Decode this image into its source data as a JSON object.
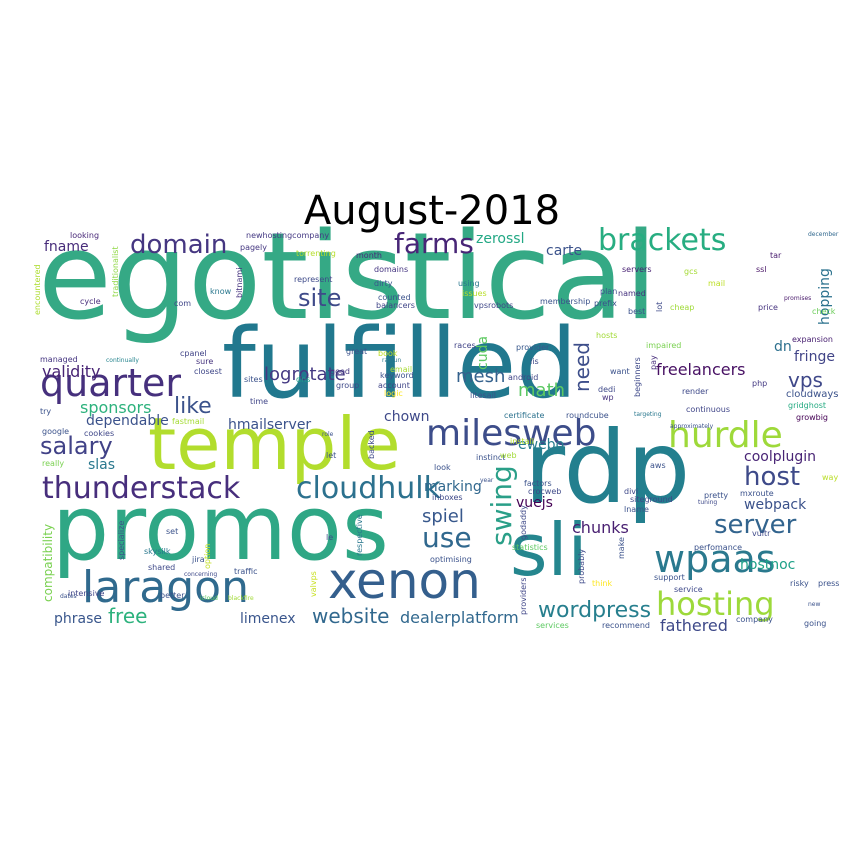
{
  "title": "August-2018",
  "palette": "viridis",
  "words": [
    {
      "text": "egotistical",
      "color": "#35a985"
    },
    {
      "text": "fulfilled",
      "color": "#21788e"
    },
    {
      "text": "rdp",
      "color": "#237f8e"
    },
    {
      "text": "promos",
      "color": "#2fa785"
    },
    {
      "text": "temple",
      "color": "#b2dd2d"
    },
    {
      "text": "sli",
      "color": "#25868e"
    },
    {
      "text": "xenon",
      "color": "#345f8d"
    },
    {
      "text": "laragon",
      "color": "#306a8e"
    },
    {
      "text": "quarter",
      "color": "#46307d"
    },
    {
      "text": "milesweb",
      "color": "#3d4d8a"
    },
    {
      "text": "hurdle",
      "color": "#9ed93a"
    },
    {
      "text": "thunderstack",
      "color": "#472e7c"
    },
    {
      "text": "cloudhulk",
      "color": "#2c718e"
    },
    {
      "text": "wpaas",
      "color": "#2a798e"
    },
    {
      "text": "hosting",
      "color": "#9dd93b"
    },
    {
      "text": "brackets",
      "color": "#27ad81"
    },
    {
      "text": "domain",
      "color": "#453681"
    },
    {
      "text": "farms",
      "color": "#482677"
    },
    {
      "text": "salary",
      "color": "#414287"
    },
    {
      "text": "host",
      "color": "#3e4a89"
    },
    {
      "text": "server",
      "color": "#32648e"
    },
    {
      "text": "site",
      "color": "#3e4a89"
    },
    {
      "text": "like",
      "color": "#3b528b"
    },
    {
      "text": "swing",
      "color": "#2a9f88"
    },
    {
      "text": "use",
      "color": "#30688e"
    },
    {
      "text": "website",
      "color": "#31688e"
    },
    {
      "text": "wordpress",
      "color": "#277f8e"
    },
    {
      "text": "vps",
      "color": "#3f4889"
    },
    {
      "text": "need",
      "color": "#3d4e8a"
    },
    {
      "text": "mesh",
      "color": "#34618d"
    },
    {
      "text": "math",
      "color": "#5cc863"
    },
    {
      "text": "free",
      "color": "#2db27d"
    },
    {
      "text": "spiel",
      "color": "#38588c"
    },
    {
      "text": "chunks",
      "color": "#481f71"
    },
    {
      "text": "fathered",
      "color": "#3e4989"
    },
    {
      "text": "dealerplatform",
      "color": "#31688e"
    },
    {
      "text": "logrotate",
      "color": "#443983"
    },
    {
      "text": "sponsors",
      "color": "#2db27d"
    },
    {
      "text": "validity",
      "color": "#482475"
    },
    {
      "text": "fname",
      "color": "#472c7a"
    },
    {
      "text": "freelancers",
      "color": "#471063"
    },
    {
      "text": "hostnoc",
      "color": "#1fa188"
    },
    {
      "text": "webpack",
      "color": "#3b528b"
    },
    {
      "text": "coolplugin",
      "color": "#482475"
    },
    {
      "text": "limenex",
      "color": "#39558c"
    },
    {
      "text": "vuejs",
      "color": "#440154"
    },
    {
      "text": "ewebo",
      "color": "#287d8e"
    },
    {
      "text": "zerossl",
      "color": "#22a884"
    },
    {
      "text": "carte",
      "color": "#3b528b"
    },
    {
      "text": "dependable",
      "color": "#3b528b"
    },
    {
      "text": "chown",
      "color": "#3e4989"
    },
    {
      "text": "marking",
      "color": "#31688e"
    },
    {
      "text": "hmailserver",
      "color": "#3b528b"
    },
    {
      "text": "phrase",
      "color": "#39568c"
    },
    {
      "text": "hopping",
      "color": "#2c728e"
    },
    {
      "text": "fringe",
      "color": "#414487"
    },
    {
      "text": "dn",
      "color": "#2d708e"
    },
    {
      "text": "cuda",
      "color": "#5ec962"
    },
    {
      "text": "slas",
      "color": "#2a788e"
    },
    {
      "text": "compatibility",
      "color": "#7ad151"
    },
    {
      "text": "cloudways",
      "color": "#3b528b"
    },
    {
      "text": "newhostingcompany",
      "color": "#443983"
    },
    {
      "text": "torrenting",
      "color": "#b5de2b"
    },
    {
      "text": "pagely",
      "color": "#453781"
    },
    {
      "text": "looking",
      "color": "#482878"
    },
    {
      "text": "traditionalist",
      "color": "#8fd744"
    },
    {
      "text": "encountered",
      "color": "#addc30"
    },
    {
      "text": "bitnami",
      "color": "#46337f"
    },
    {
      "text": "represent",
      "color": "#3e4a89"
    },
    {
      "text": "dirty",
      "color": "#39568c"
    },
    {
      "text": "counted",
      "color": "#3b528b"
    },
    {
      "text": "balancers",
      "color": "#404688"
    },
    {
      "text": "domains",
      "color": "#453581"
    },
    {
      "text": "using",
      "color": "#2a778e"
    },
    {
      "text": "vpsrobots",
      "color": "#3f4788"
    },
    {
      "text": "issues",
      "color": "#b8de29"
    },
    {
      "text": "gcs",
      "color": "#a5db36"
    },
    {
      "text": "servers",
      "color": "#482173"
    },
    {
      "text": "named",
      "color": "#46327e"
    },
    {
      "text": "best",
      "color": "#3b528b"
    },
    {
      "text": "lot",
      "color": "#3e4a89"
    },
    {
      "text": "mail",
      "color": "#bddf26"
    },
    {
      "text": "cheap",
      "color": "#a0da39"
    },
    {
      "text": "price",
      "color": "#46337f"
    },
    {
      "text": "ssl",
      "color": "#471365"
    },
    {
      "text": "tar",
      "color": "#481c6e"
    },
    {
      "text": "december",
      "color": "#31688e"
    },
    {
      "text": "promises",
      "color": "#48196b"
    },
    {
      "text": "check",
      "color": "#6ccd5a"
    },
    {
      "text": "expansion",
      "color": "#482071"
    },
    {
      "text": "gridghost",
      "color": "#25ab82"
    },
    {
      "text": "growbig",
      "color": "#440154"
    },
    {
      "text": "way",
      "color": "#bade28"
    },
    {
      "text": "cycle",
      "color": "#472d7b"
    },
    {
      "text": "know",
      "color": "#2a788e"
    },
    {
      "text": "com",
      "color": "#404688"
    },
    {
      "text": "managed",
      "color": "#453581"
    },
    {
      "text": "continually",
      "color": "#25848e"
    },
    {
      "text": "cpanel",
      "color": "#414487"
    },
    {
      "text": "closest",
      "color": "#3f4788"
    },
    {
      "text": "sure",
      "color": "#45337d"
    },
    {
      "text": "sites",
      "color": "#3b528b"
    },
    {
      "text": "time",
      "color": "#404688"
    },
    {
      "text": "dns",
      "color": "#1fa088"
    },
    {
      "text": "good",
      "color": "#453781"
    },
    {
      "text": "group",
      "color": "#3e4989"
    },
    {
      "text": "great",
      "color": "#3b528b"
    },
    {
      "text": "email",
      "color": "#a8db34"
    },
    {
      "text": "races",
      "color": "#414487"
    },
    {
      "text": "book",
      "color": "#c0df25"
    },
    {
      "text": "raigun",
      "color": "#2a788e"
    },
    {
      "text": "keyword",
      "color": "#3b528b"
    },
    {
      "text": "account",
      "color": "#404688"
    },
    {
      "text": "logic",
      "color": "#fde725"
    },
    {
      "text": "litesail",
      "color": "#3b528b"
    },
    {
      "text": "iis",
      "color": "#3e4989"
    },
    {
      "text": "android",
      "color": "#404688"
    },
    {
      "text": "provider",
      "color": "#38588c"
    },
    {
      "text": "month",
      "color": "#472c7a"
    },
    {
      "text": "membership",
      "color": "#3b528b"
    },
    {
      "text": "plan",
      "color": "#3b528b"
    },
    {
      "text": "prefix",
      "color": "#3b528b"
    },
    {
      "text": "impaired",
      "color": "#7ad151"
    },
    {
      "text": "want",
      "color": "#3b528b"
    },
    {
      "text": "hosts",
      "color": "#a2da37"
    },
    {
      "text": "beginners",
      "color": "#3e4989"
    },
    {
      "text": "pay",
      "color": "#472d7b"
    },
    {
      "text": "dedi",
      "color": "#3e4989"
    },
    {
      "text": "wp",
      "color": "#46327e"
    },
    {
      "text": "php",
      "color": "#443a83"
    },
    {
      "text": "render",
      "color": "#3e4989"
    },
    {
      "text": "continuous",
      "color": "#404688"
    },
    {
      "text": "approximately",
      "color": "#3b528b"
    },
    {
      "text": "targeting",
      "color": "#2a788e"
    },
    {
      "text": "roundcube",
      "color": "#3b528b"
    },
    {
      "text": "certificate",
      "color": "#2c728e"
    },
    {
      "text": "fastmail",
      "color": "#a5db36"
    },
    {
      "text": "google",
      "color": "#3b528b"
    },
    {
      "text": "cookies",
      "color": "#3f4788"
    },
    {
      "text": "try",
      "color": "#3b528b"
    },
    {
      "text": "really",
      "color": "#7ad151"
    },
    {
      "text": "intensive",
      "color": "#404688"
    },
    {
      "text": "specialize",
      "color": "#3b528b"
    },
    {
      "text": "skysilk",
      "color": "#2a788e"
    },
    {
      "text": "set",
      "color": "#3b528b"
    },
    {
      "text": "shared",
      "color": "#3e4989"
    },
    {
      "text": "jira",
      "color": "#3b528b"
    },
    {
      "text": "traffic",
      "color": "#3b528b"
    },
    {
      "text": "concerning",
      "color": "#3e4989"
    },
    {
      "text": "option",
      "color": "#c2df23"
    },
    {
      "text": "better",
      "color": "#3b528b"
    },
    {
      "text": "icloud",
      "color": "#5ec962"
    },
    {
      "text": "blackfire",
      "color": "#a2da37"
    },
    {
      "text": "dates",
      "color": "#3b528b"
    },
    {
      "text": "role",
      "color": "#3b528b"
    },
    {
      "text": "let",
      "color": "#3b528b"
    },
    {
      "text": "le",
      "color": "#3e4989"
    },
    {
      "text": "backed",
      "color": "#3e4989"
    },
    {
      "text": "respective",
      "color": "#2a788e"
    },
    {
      "text": "valvps",
      "color": "#c8e020"
    },
    {
      "text": "optimising",
      "color": "#3b528b"
    },
    {
      "text": "inboxes",
      "color": "#3e4989"
    },
    {
      "text": "look",
      "color": "#3b528b"
    },
    {
      "text": "year",
      "color": "#3b528b"
    },
    {
      "text": "instinct",
      "color": "#3b528b"
    },
    {
      "text": "web",
      "color": "#a2da37"
    },
    {
      "text": "install",
      "color": "#b5de2b"
    },
    {
      "text": "factors",
      "color": "#3b528b"
    },
    {
      "text": "crocweb",
      "color": "#3e4989"
    },
    {
      "text": "godaddy",
      "color": "#3e4989"
    },
    {
      "text": "statistics",
      "color": "#5ec962"
    },
    {
      "text": "providers",
      "color": "#404688"
    },
    {
      "text": "probably",
      "color": "#3e4989"
    },
    {
      "text": "make",
      "color": "#3b528b"
    },
    {
      "text": "think",
      "color": "#fde725"
    },
    {
      "text": "services",
      "color": "#5ec962"
    },
    {
      "text": "recommend",
      "color": "#3b528b"
    },
    {
      "text": "lname",
      "color": "#3b528b"
    },
    {
      "text": "siteground",
      "color": "#3e4989"
    },
    {
      "text": "divi",
      "color": "#3e4989"
    },
    {
      "text": "aws",
      "color": "#3b528b"
    },
    {
      "text": "pretty",
      "color": "#3b528b"
    },
    {
      "text": "tuning",
      "color": "#3e4989"
    },
    {
      "text": "mxroute",
      "color": "#3b528b"
    },
    {
      "text": "vultr",
      "color": "#3e4989"
    },
    {
      "text": "perfomance",
      "color": "#3b528b"
    },
    {
      "text": "support",
      "color": "#3b528b"
    },
    {
      "text": "service",
      "color": "#3e4989"
    },
    {
      "text": "risky",
      "color": "#3b528b"
    },
    {
      "text": "press",
      "color": "#3b528b"
    },
    {
      "text": "new",
      "color": "#3b528b"
    },
    {
      "text": "company",
      "color": "#3b528b"
    },
    {
      "text": "going",
      "color": "#3b528b"
    }
  ]
}
